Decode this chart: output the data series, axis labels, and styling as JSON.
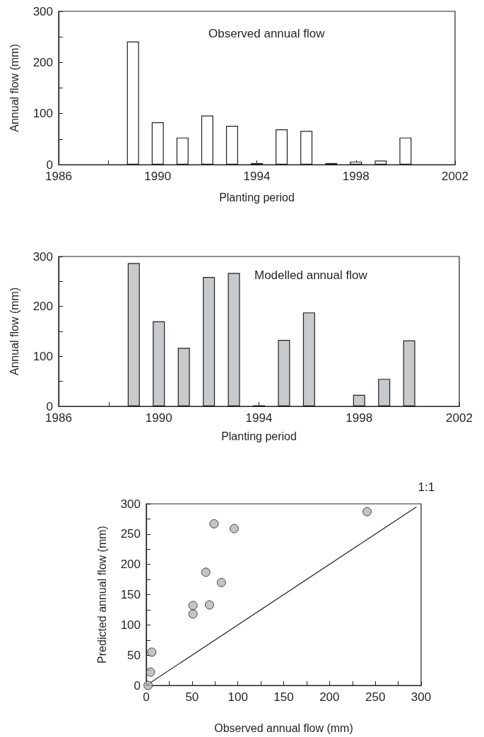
{
  "chart_data": [
    {
      "type": "bar",
      "title": "Observed annual flow",
      "xlabel": "Planting period",
      "ylabel": "Annual flow (mm)",
      "x": [
        1989,
        1990,
        1991,
        1992,
        1993,
        1994,
        1995,
        1996,
        1997,
        1998,
        1999,
        2000
      ],
      "values": [
        241,
        83,
        53,
        96,
        76,
        3,
        69,
        66,
        3,
        6,
        8,
        53
      ],
      "color": "#ffffff",
      "xlim": [
        1986,
        2002
      ],
      "xticks": [
        1986,
        {
          "value": 1988,
          "label": null
        },
        1990,
        {
          "value": 1992,
          "label": null
        },
        1994,
        {
          "value": 1996,
          "label": null
        },
        1998,
        {
          "value": 2000,
          "label": null
        },
        2002
      ],
      "ylim": [
        0,
        300
      ],
      "yticks": [
        0,
        {
          "value": 50,
          "label": null
        },
        100,
        {
          "value": 150,
          "label": null
        },
        200,
        {
          "value": 250,
          "label": null
        },
        300
      ],
      "grid": false
    },
    {
      "type": "bar",
      "title": "Modelled annual flow",
      "xlabel": "Planting period",
      "ylabel": "Annual flow (mm)",
      "x": [
        1989,
        1990,
        1991,
        1992,
        1993,
        1994,
        1995,
        1996,
        1997,
        1998,
        1999,
        2000
      ],
      "values": [
        287,
        170,
        117,
        259,
        267,
        2,
        133,
        188,
        0,
        23,
        55,
        132
      ],
      "color": "#c8c9cb",
      "xlim": [
        1986,
        2002
      ],
      "xticks": [
        1986,
        {
          "value": 1988,
          "label": null
        },
        1990,
        {
          "value": 1992,
          "label": null
        },
        1994,
        {
          "value": 1996,
          "label": null
        },
        1998,
        {
          "value": 2000,
          "label": null
        },
        2002
      ],
      "ylim": [
        0,
        300
      ],
      "yticks": [
        0,
        {
          "value": 50,
          "label": null
        },
        100,
        {
          "value": 150,
          "label": null
        },
        200,
        {
          "value": 250,
          "label": null
        },
        300
      ],
      "grid": false
    },
    {
      "type": "scatter",
      "xlabel": "Observed annual flow (mm)",
      "ylabel": "Predicted annual flow (mm)",
      "series": [
        {
          "marker": "circle",
          "color": "#b4b5b7",
          "x": [
            2,
            4.6,
            6,
            51,
            51,
            69,
            65,
            82,
            74,
            96,
            241
          ],
          "values": [
            0,
            22,
            55,
            118,
            132,
            133,
            187,
            170,
            267,
            259,
            287
          ]
        },
        {
          "type": "line",
          "color": "#231f20",
          "line_style": "solid",
          "x": [
            0,
            295
          ],
          "values": [
            0,
            295
          ]
        }
      ],
      "annotations": [
        {
          "text": "1:1",
          "x": 295,
          "y": 295
        }
      ],
      "xlim": [
        0,
        300
      ],
      "xticks": [
        0,
        {
          "value": 25,
          "label": null
        },
        50,
        {
          "value": 75,
          "label": null
        },
        100,
        {
          "value": 125,
          "label": null
        },
        150,
        {
          "value": 175,
          "label": null
        },
        200,
        {
          "value": 225,
          "label": null
        },
        250,
        {
          "value": 275,
          "label": null
        },
        300
      ],
      "ylim": [
        0,
        300
      ],
      "yticks": [
        0,
        {
          "value": 25,
          "label": null
        },
        50,
        {
          "value": 75,
          "label": null
        },
        100,
        {
          "value": 125,
          "label": null
        },
        150,
        {
          "value": 175,
          "label": null
        },
        200,
        {
          "value": 225,
          "label": null
        },
        250,
        {
          "value": 275,
          "label": null
        },
        300
      ],
      "grid": false
    }
  ]
}
